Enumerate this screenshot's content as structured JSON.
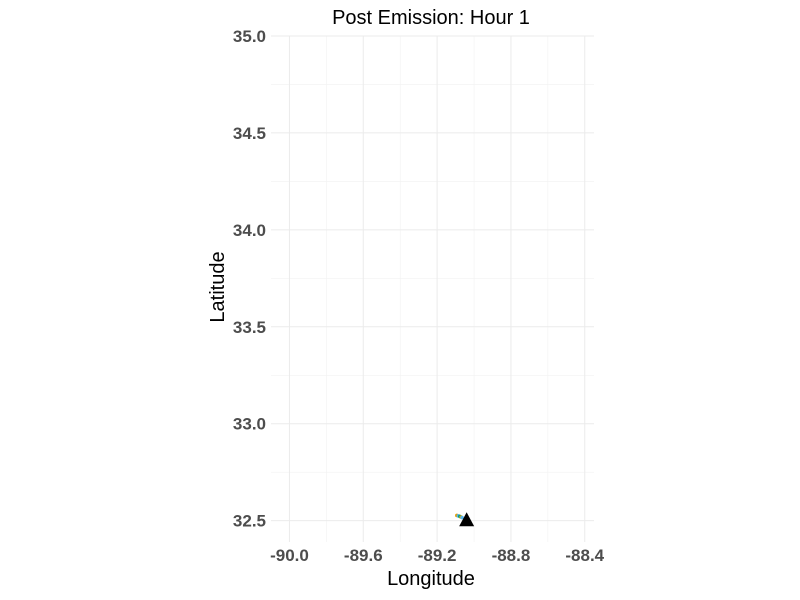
{
  "chart_data": {
    "type": "scatter",
    "title": "Post Emission: Hour 1",
    "xlabel": "Longitude",
    "ylabel": "Latitude",
    "xlim": [
      -90.1,
      -88.35
    ],
    "ylim": [
      32.39,
      35.0
    ],
    "xticks": [
      -90.0,
      -89.6,
      -89.2,
      -88.8,
      -88.4
    ],
    "xtick_labels": [
      "-90.0",
      "-89.6",
      "-89.2",
      "-88.8",
      "-88.4"
    ],
    "yticks": [
      32.5,
      33.0,
      33.5,
      34.0,
      34.5,
      35.0
    ],
    "ytick_labels": [
      "32.5",
      "33.0",
      "33.5",
      "34.0",
      "34.5",
      "35.0"
    ],
    "grid": true,
    "legend": "none",
    "series": [
      {
        "marker": "dot",
        "colors": [
          "#e69f00",
          "#56b4e9",
          "#009e73"
        ],
        "points": [
          {
            "x": -89.093,
            "y": 32.527
          },
          {
            "x": -89.085,
            "y": 32.525
          },
          {
            "x": -89.077,
            "y": 32.522
          },
          {
            "x": -89.07,
            "y": 32.519
          },
          {
            "x": -89.065,
            "y": 32.516
          }
        ]
      },
      {
        "marker": "triangle",
        "colors": [
          "#000000"
        ],
        "points": [
          {
            "x": -89.04,
            "y": 32.505
          }
        ]
      }
    ]
  }
}
